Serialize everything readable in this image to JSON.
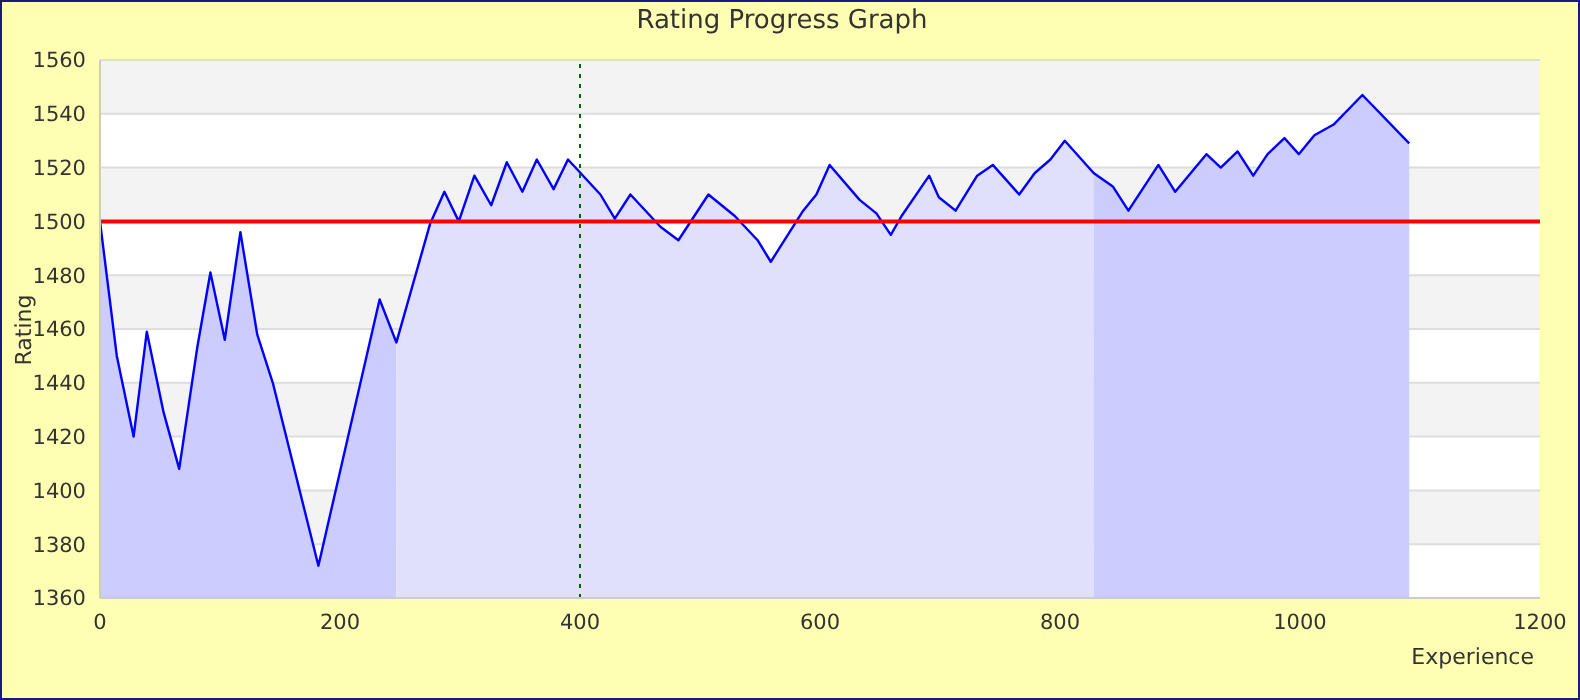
{
  "chart_data": {
    "type": "line",
    "title": "Rating Progress Graph",
    "xlabel": "Experience",
    "ylabel": "Rating",
    "x": [
      0,
      14,
      28,
      39,
      53,
      66,
      81,
      92,
      104,
      117,
      131,
      144,
      182,
      233,
      247,
      275,
      287,
      299,
      312,
      326,
      339,
      352,
      364,
      378,
      390,
      417,
      429,
      442,
      467,
      482,
      507,
      529,
      548,
      559,
      586,
      597,
      608,
      633,
      647,
      659,
      668,
      691,
      699,
      713,
      731,
      744,
      766,
      779,
      792,
      804,
      828,
      844,
      857,
      882,
      896,
      922,
      934,
      948,
      961,
      973,
      987,
      999,
      1012,
      1028,
      1052,
      1091
    ],
    "series": [
      {
        "type": "area",
        "color": "#ccccff",
        "x": [
          0,
          14,
          28,
          39,
          53,
          66,
          81,
          92,
          104,
          117,
          131,
          144,
          182,
          233,
          247
        ],
        "values": [
          1500,
          1450,
          1420,
          1459,
          1429,
          1408,
          1453,
          1481,
          1456,
          1496,
          1458,
          1440,
          1372,
          1471,
          1455
        ]
      },
      {
        "type": "area",
        "color": "#e0e0fc",
        "x": [
          247,
          275,
          287,
          299,
          312,
          326,
          339,
          352,
          364,
          378,
          390,
          417,
          429,
          442,
          467,
          482,
          507,
          529,
          548,
          559,
          586,
          597,
          608,
          633,
          647,
          659,
          668,
          691,
          699,
          713,
          731,
          744,
          766,
          779,
          792,
          804,
          828
        ],
        "values": [
          1455,
          1499,
          1511,
          1500,
          1517,
          1506,
          1522,
          1511,
          1523,
          1512,
          1523,
          1510,
          1501,
          1510,
          1498,
          1493,
          1510,
          1502,
          1493,
          1485,
          1504,
          1510,
          1521,
          1508,
          1503,
          1495,
          1502,
          1517,
          1509,
          1504,
          1517,
          1521,
          1510,
          1518,
          1523,
          1530,
          1518
        ]
      },
      {
        "type": "area",
        "color": "#ccccff",
        "x": [
          828,
          844,
          857,
          882,
          896,
          922,
          934,
          948,
          961,
          973,
          987,
          999,
          1012,
          1028,
          1052,
          1091
        ],
        "values": [
          1518,
          1513,
          1504,
          1521,
          1511,
          1525,
          1520,
          1526,
          1517,
          1525,
          1531,
          1525,
          1532,
          1536,
          1547,
          1529
        ]
      },
      {
        "color": "#0000ff",
        "values": [
          1500,
          1450,
          1420,
          1459,
          1429,
          1408,
          1453,
          1481,
          1456,
          1496,
          1458,
          1440,
          1372,
          1471,
          1455,
          1499,
          1511,
          1500,
          1517,
          1506,
          1522,
          1511,
          1523,
          1512,
          1523,
          1510,
          1501,
          1510,
          1498,
          1493,
          1510,
          1502,
          1493,
          1485,
          1504,
          1510,
          1521,
          1508,
          1503,
          1495,
          1502,
          1517,
          1509,
          1504,
          1517,
          1521,
          1510,
          1518,
          1523,
          1530,
          1518,
          1513,
          1504,
          1521,
          1511,
          1525,
          1520,
          1526,
          1517,
          1525,
          1531,
          1525,
          1532,
          1536,
          1547,
          1529
        ]
      }
    ],
    "xlim": [
      0,
      1200
    ],
    "xticks": [
      0,
      200,
      400,
      600,
      800,
      1000,
      1200
    ],
    "ylim": [
      1360,
      1560
    ],
    "yticks": [
      1360,
      1380,
      1400,
      1420,
      1440,
      1460,
      1480,
      1500,
      1520,
      1540,
      1560
    ],
    "ref_lines": [
      {
        "axis": "y",
        "value": 1500,
        "color": "#ff0000",
        "line_style": "solid"
      },
      {
        "axis": "x",
        "value": 400,
        "color": "#006600",
        "line_style": "dotted"
      }
    ],
    "grid": "y",
    "marker": "none"
  }
}
